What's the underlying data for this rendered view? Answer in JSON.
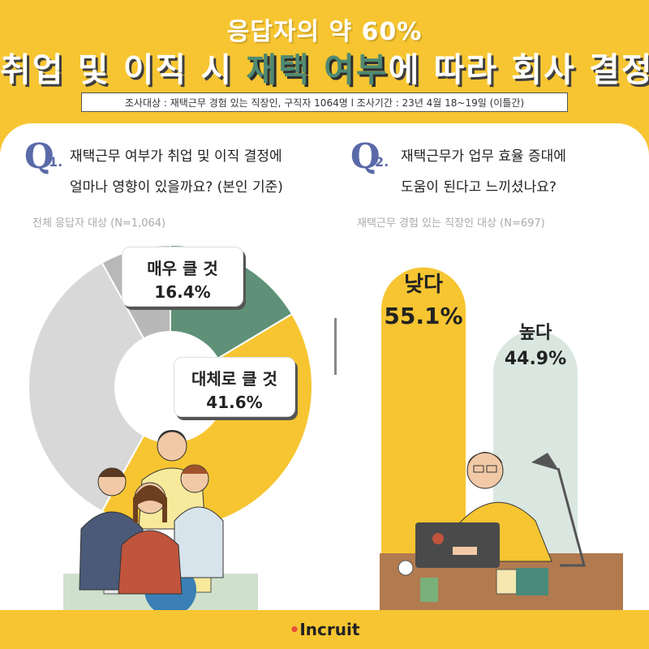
{
  "header": {
    "subtitle": "응답자의 약 60%",
    "title_pre": "취업 및 이직 시 ",
    "title_highlight": "재택 여부",
    "title_post": "에 따라 회사 결정",
    "survey_info": "조사대상 : 재택근무 경험 있는 직장인, 구직자 1064명 l 조사기간 : 23년 4월 18~19일 (이틀간)"
  },
  "q1": {
    "letter": "Q",
    "number": "1.",
    "line1": "재택근무 여부가 취업 및 이직 결정에",
    "line2": "얼마나 영향이 있을까요? (본인 기준)",
    "basis": "전체 응답자 대상 (N=1,064)"
  },
  "q2": {
    "letter": "Q",
    "number": "2.",
    "line1": "재택근무가 업무 효율 증대에",
    "line2": "도움이 된다고 느끼셨나요?",
    "basis": "재택근무 경험 있는 직장인 대상 (N=697)"
  },
  "brand": {
    "name": "Incruit",
    "accent": "#e7503c"
  },
  "colors": {
    "background": "#f6c531",
    "highlight": "#4f8a72",
    "q_accent": "#5a6aa8",
    "bar_low": "#f6c531",
    "bar_high": "#dae7e0"
  },
  "chart_data": [
    {
      "type": "pie",
      "style": "donut",
      "slices": [
        {
          "label": "매우 클 것",
          "value": 16.4,
          "display": "16.4%",
          "color": "#5e9177"
        },
        {
          "label": "대체로 클 것",
          "value": 41.6,
          "display": "41.6%",
          "color": "#f6c531"
        },
        {
          "label": "",
          "value": 8.0,
          "display": "",
          "color": "#b8b8b8"
        },
        {
          "label": "",
          "value": 34.0,
          "display": "",
          "color": "#d8d8d8"
        }
      ]
    },
    {
      "type": "bar",
      "categories": [
        "낮다",
        "높다"
      ],
      "values": [
        55.1,
        44.9
      ],
      "display": [
        "55.1%",
        "44.9%"
      ],
      "colors": [
        "#f6c531",
        "#dae7e0"
      ]
    }
  ]
}
